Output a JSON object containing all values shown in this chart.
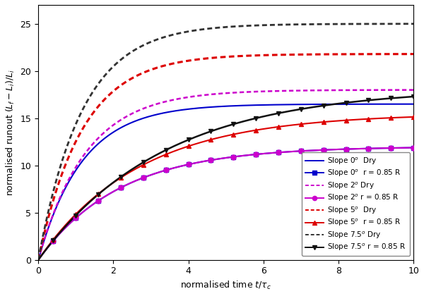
{
  "xlim": [
    0,
    10
  ],
  "ylim": [
    0,
    27
  ],
  "xticks": [
    0,
    2,
    4,
    6,
    8,
    10
  ],
  "yticks": [
    0,
    5,
    10,
    15,
    20,
    25
  ],
  "xlabel": "normalised time $t/\\tau_c$",
  "ylabel": "normalised runout $(L_f - L_i)/L_i$",
  "curves": [
    {
      "label": "Slope 0$^o$  Dry",
      "color": "#0000cc",
      "linestyle": "solid",
      "linewidth": 1.5,
      "marker": null,
      "final_value": 16.5,
      "growth_rate": 1.6,
      "sat_time": 3.5
    },
    {
      "label": "Slope 0$^o$  r = 0.85 R",
      "color": "#0000cc",
      "linestyle": "solid",
      "linewidth": 1.5,
      "marker": "s",
      "markersize": 5,
      "final_value": 12.0,
      "growth_rate": 1.1,
      "sat_time": 6.5
    },
    {
      "label": "Slope 2$^o$ Dry",
      "color": "#cc00cc",
      "linestyle": "dotted",
      "linewidth": 1.8,
      "marker": null,
      "final_value": 18.0,
      "growth_rate": 1.6,
      "sat_time": 3.8
    },
    {
      "label": "Slope 2$^o$ r = 0.85 R",
      "color": "#cc00cc",
      "linestyle": "solid",
      "linewidth": 1.5,
      "marker": "o",
      "markersize": 5,
      "final_value": 12.0,
      "growth_rate": 1.1,
      "sat_time": 6.5
    },
    {
      "label": "Slope 5$^o$  Dry",
      "color": "#dd0000",
      "linestyle": "dotted",
      "linewidth": 2.2,
      "marker": null,
      "final_value": 21.8,
      "growth_rate": 1.9,
      "sat_time": 3.5
    },
    {
      "label": "Slope 5$^o$  r = 0.85 R",
      "color": "#dd0000",
      "linestyle": "solid",
      "linewidth": 1.5,
      "marker": "^",
      "markersize": 5,
      "final_value": 15.5,
      "growth_rate": 1.15,
      "sat_time": 8.0
    },
    {
      "label": "Slope 7.5$^o$ Dry",
      "color": "#333333",
      "linestyle": "dotted",
      "linewidth": 2.0,
      "marker": null,
      "final_value": 25.0,
      "growth_rate": 2.2,
      "sat_time": 3.5
    },
    {
      "label": "Slope 7.5$^o$ r = 0.85 R",
      "color": "#111111",
      "linestyle": "solid",
      "linewidth": 1.8,
      "marker": "v",
      "markersize": 5,
      "final_value": 18.2,
      "growth_rate": 1.1,
      "sat_time": 10.0
    }
  ],
  "legend_fontsize": 7.5,
  "axis_fontsize": 9,
  "tick_fontsize": 9,
  "background_color": "#ffffff"
}
